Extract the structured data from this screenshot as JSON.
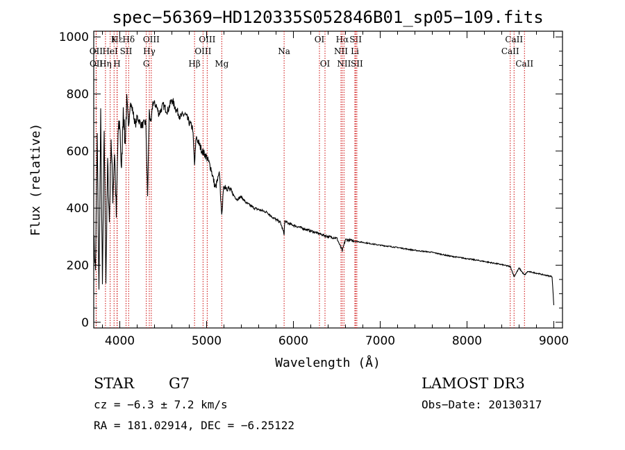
{
  "chart_data": {
    "type": "line",
    "title": "spec−56369−HD120335S052846B01_sp05−109.fits",
    "xlabel": "Wavelength (Å)",
    "ylabel": "Flux (relative)",
    "xlim": [
      3700,
      9100
    ],
    "ylim": [
      -20,
      1020
    ],
    "xticks": [
      4000,
      5000,
      6000,
      7000,
      8000,
      9000
    ],
    "yticks": [
      0,
      200,
      400,
      600,
      800,
      1000
    ],
    "series": [
      {
        "name": "flux",
        "x": [
          3700,
          3720,
          3740,
          3760,
          3780,
          3800,
          3820,
          3840,
          3860,
          3880,
          3900,
          3920,
          3940,
          3960,
          3980,
          4000,
          4020,
          4040,
          4060,
          4080,
          4100,
          4120,
          4150,
          4180,
          4200,
          4250,
          4300,
          4320,
          4340,
          4360,
          4380,
          4420,
          4450,
          4500,
          4550,
          4600,
          4650,
          4700,
          4750,
          4800,
          4840,
          4861,
          4880,
          4920,
          4950,
          5000,
          5050,
          5100,
          5150,
          5170,
          5183,
          5200,
          5250,
          5300,
          5350,
          5400,
          5450,
          5500,
          5550,
          5600,
          5650,
          5700,
          5750,
          5800,
          5850,
          5893,
          5900,
          5950,
          6000,
          6100,
          6200,
          6300,
          6400,
          6500,
          6563,
          6600,
          6700,
          6800,
          6900,
          7000,
          7200,
          7400,
          7600,
          7800,
          8000,
          8200,
          8400,
          8500,
          8542,
          8600,
          8662,
          8700,
          8800,
          8900,
          8980,
          9000
        ],
        "y": [
          300,
          180,
          650,
          100,
          720,
          120,
          680,
          150,
          560,
          350,
          650,
          440,
          600,
          370,
          660,
          700,
          520,
          760,
          620,
          770,
          680,
          770,
          740,
          690,
          720,
          690,
          700,
          440,
          740,
          690,
          770,
          760,
          730,
          760,
          740,
          780,
          745,
          720,
          730,
          700,
          680,
          550,
          650,
          620,
          600,
          580,
          540,
          470,
          520,
          380,
          410,
          480,
          470,
          450,
          430,
          440,
          420,
          410,
          400,
          395,
          390,
          385,
          370,
          360,
          350,
          310,
          355,
          345,
          340,
          330,
          320,
          310,
          300,
          295,
          250,
          290,
          285,
          280,
          275,
          270,
          262,
          252,
          245,
          232,
          223,
          213,
          202,
          195,
          160,
          190,
          165,
          178,
          172,
          165,
          160,
          60
        ]
      }
    ]
  },
  "lines": [
    {
      "label": "Hε",
      "wl": 3970,
      "row": 1
    },
    {
      "label": "K",
      "wl": 3934,
      "row": 1
    },
    {
      "label": "Hδ",
      "wl": 4102,
      "row": 1
    },
    {
      "label": "OIII",
      "wl": 4363,
      "row": 1
    },
    {
      "label": "OIII",
      "wl": 5007,
      "row": 1
    },
    {
      "label": "OI",
      "wl": 6300,
      "row": 1
    },
    {
      "label": "Hα",
      "wl": 6563,
      "row": 1
    },
    {
      "label": "SII",
      "wl": 6717,
      "row": 1
    },
    {
      "label": "CaII",
      "wl": 8542,
      "row": 1
    },
    {
      "label": "OII",
      "wl": 3727,
      "row": 2
    },
    {
      "label": "HeI",
      "wl": 3889,
      "row": 2
    },
    {
      "label": "SII",
      "wl": 4072,
      "row": 2
    },
    {
      "label": "Hγ",
      "wl": 4340,
      "row": 2
    },
    {
      "label": "OIII",
      "wl": 4959,
      "row": 2
    },
    {
      "label": "Na",
      "wl": 5893,
      "row": 2
    },
    {
      "label": "NII",
      "wl": 6548,
      "row": 2
    },
    {
      "label": "Li",
      "wl": 6708,
      "row": 2
    },
    {
      "label": "CaII",
      "wl": 8498,
      "row": 2
    },
    {
      "label": "OII",
      "wl": 3729,
      "row": 3
    },
    {
      "label": "Hη",
      "wl": 3835,
      "row": 3
    },
    {
      "label": "H",
      "wl": 3968,
      "row": 3
    },
    {
      "label": "G",
      "wl": 4305,
      "row": 3
    },
    {
      "label": "Hβ",
      "wl": 4861,
      "row": 3
    },
    {
      "label": "Mg",
      "wl": 5175,
      "row": 3
    },
    {
      "label": "OI",
      "wl": 6364,
      "row": 3
    },
    {
      "label": "NII",
      "wl": 6583,
      "row": 3
    },
    {
      "label": "SII",
      "wl": 6731,
      "row": 3
    },
    {
      "label": "CaII",
      "wl": 8662,
      "row": 3
    }
  ],
  "info": {
    "class": "STAR",
    "subclass": "G7",
    "cz": "cz = −6.3 ± 7.2 km/s",
    "coords": "RA = 181.02914, DEC =  −6.25122",
    "survey": "LAMOST DR3",
    "obs_date": "Obs−Date: 20130317"
  }
}
